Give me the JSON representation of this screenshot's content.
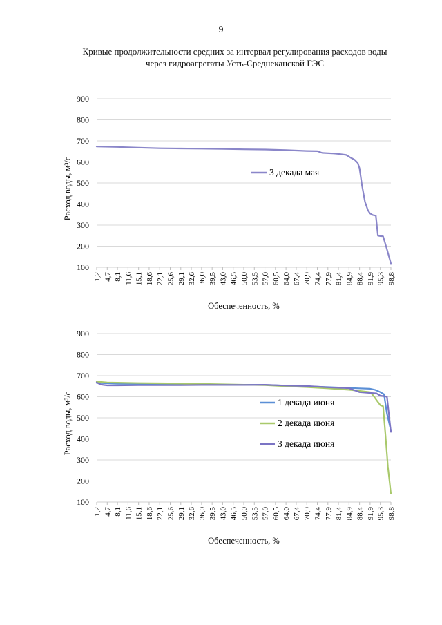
{
  "page_number": "9",
  "title_line1": "Кривые продолжительности средних за интервал регулирования расходов воды",
  "title_line2": "через гидроагрегаты Усть-Среднеканской ГЭС",
  "chart_data": [
    {
      "type": "line",
      "xlabel": "Обеспеченность, %",
      "ylabel": "Расход воды, м³/с",
      "ylim": [
        100,
        900
      ],
      "yticks": [
        100,
        200,
        300,
        400,
        500,
        600,
        700,
        800,
        900
      ],
      "grid": true,
      "legend_position": "center-right",
      "categories": [
        "1,2",
        "4,7",
        "8,1",
        "11,6",
        "15,1",
        "18,6",
        "22,1",
        "25,6",
        "29,1",
        "32,6",
        "36,0",
        "39,5",
        "43,0",
        "46,5",
        "50,0",
        "53,5",
        "57,0",
        "60,5",
        "64,0",
        "67,4",
        "70,9",
        "74,4",
        "77,9",
        "81,4",
        "84,9",
        "88,4",
        "91,9",
        "95,3",
        "98,8"
      ],
      "series": [
        {
          "name": "3 декада мая",
          "color": "#8a86c9",
          "x": [
            1.2,
            8.1,
            15.1,
            22.1,
            29.1,
            36.0,
            43.0,
            50.0,
            57.0,
            64.0,
            70.9,
            74.4,
            76.0,
            80.0,
            82.0,
            84.0,
            85.5,
            86.8,
            87.8,
            88.4,
            89.2,
            90.2,
            91.2,
            91.9,
            92.8,
            93.8,
            94.5,
            95.3,
            96.2,
            97.5,
            98.8
          ],
          "y": [
            673,
            671,
            668,
            665,
            664,
            663,
            662,
            660,
            659,
            656,
            652,
            651,
            643,
            640,
            637,
            633,
            620,
            610,
            595,
            570,
            490,
            410,
            370,
            355,
            348,
            345,
            250,
            248,
            247,
            185,
            118
          ]
        }
      ]
    },
    {
      "type": "line",
      "xlabel": "Обеспеченность, %",
      "ylabel": "Расход воды, м³/с",
      "ylim": [
        100,
        900
      ],
      "yticks": [
        100,
        200,
        300,
        400,
        500,
        600,
        700,
        800,
        900
      ],
      "grid": true,
      "legend_position": "center-right",
      "categories": [
        "1,2",
        "4,7",
        "8,1",
        "11,6",
        "15,1",
        "18,6",
        "22,1",
        "25,6",
        "29,1",
        "32,6",
        "36,0",
        "39,5",
        "43,0",
        "46,5",
        "50,0",
        "53,5",
        "57,0",
        "60,5",
        "64,0",
        "67,4",
        "70,9",
        "74,4",
        "77,9",
        "81,4",
        "84,9",
        "88,4",
        "91,9",
        "95,3",
        "98,8"
      ],
      "series": [
        {
          "name": "1 декада июня",
          "color": "#5b8fd6",
          "x": [
            1.2,
            8.1,
            15.1,
            22.1,
            29.1,
            36.0,
            43.0,
            50.0,
            57.0,
            60.5,
            64.0,
            70.9,
            77.9,
            84.9,
            88.4,
            91.9,
            93.5,
            95.3,
            96.5,
            97.5,
            98.8
          ],
          "y": [
            666,
            662,
            661,
            660,
            659,
            658,
            657,
            657,
            656,
            655,
            652,
            650,
            646,
            642,
            640,
            638,
            633,
            622,
            612,
            520,
            440
          ]
        },
        {
          "name": "2 декада июня",
          "color": "#a9c96b",
          "x": [
            1.2,
            4.7,
            8.1,
            15.1,
            22.1,
            29.1,
            36.0,
            43.0,
            50.0,
            57.0,
            64.0,
            70.9,
            77.9,
            84.9,
            88.4,
            91.9,
            93.0,
            94.5,
            95.3,
            96.2,
            97.0,
            97.8,
            98.8
          ],
          "y": [
            672,
            668,
            667,
            665,
            664,
            663,
            661,
            659,
            657,
            655,
            650,
            646,
            640,
            633,
            628,
            622,
            605,
            575,
            560,
            555,
            420,
            270,
            140
          ]
        },
        {
          "name": "3 декада июня",
          "color": "#7b74c4",
          "x": [
            1.2,
            2.5,
            4.7,
            8.1,
            15.1,
            22.1,
            29.1,
            36.0,
            43.0,
            50.0,
            57.0,
            64.0,
            70.9,
            77.9,
            84.9,
            86.5,
            88.4,
            91.9,
            94.0,
            95.3,
            96.5,
            97.5,
            98.8
          ],
          "y": [
            668,
            658,
            654,
            654,
            655,
            655,
            655,
            656,
            656,
            656,
            657,
            653,
            651,
            645,
            641,
            632,
            622,
            618,
            616,
            605,
            603,
            600,
            433
          ]
        }
      ]
    }
  ]
}
